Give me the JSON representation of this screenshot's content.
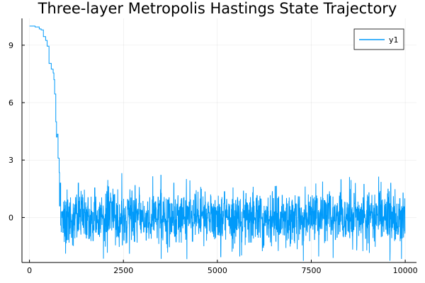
{
  "chart_data": {
    "type": "line",
    "title": "Three-layer Metropolis Hastings State Trajectory",
    "xlabel": "",
    "ylabel": "",
    "xlim": [
      -200,
      10300
    ],
    "ylim": [
      -2.35,
      10.4
    ],
    "xticks": [
      0,
      2500,
      5000,
      7500,
      10000
    ],
    "xtick_labels": [
      "0",
      "2500",
      "5000",
      "7500",
      "10000"
    ],
    "yticks": [
      0,
      3,
      6,
      9
    ],
    "ytick_labels": [
      "0",
      "3",
      "6",
      "9"
    ],
    "grid": true,
    "legend_position": "top-right",
    "series": [
      {
        "name": "y1",
        "color": "#009AFA",
        "burn_in": {
          "x": [
            0,
            150,
            150,
            260,
            260,
            310,
            310,
            370,
            370,
            430,
            430,
            470,
            470,
            520,
            520,
            580,
            580,
            630,
            630,
            650,
            650,
            670,
            670,
            700,
            700,
            720,
            720,
            735,
            735,
            760,
            760,
            790,
            790,
            800,
            800,
            815,
            815,
            830,
            830,
            845
          ],
          "y": [
            10.0,
            10.0,
            9.95,
            9.95,
            9.85,
            9.85,
            9.8,
            9.8,
            9.45,
            9.45,
            9.25,
            9.25,
            8.95,
            8.95,
            8.05,
            8.05,
            7.75,
            7.75,
            7.55,
            7.55,
            7.2,
            7.2,
            6.45,
            6.45,
            5.0,
            5.0,
            4.2,
            4.2,
            4.35,
            4.35,
            3.1,
            3.1,
            2.35,
            2.35,
            0.6,
            0.6,
            1.8,
            1.8,
            -0.4,
            -0.4
          ]
        },
        "stationary": {
          "x_start": 845,
          "x_end": 10000,
          "mean": 0,
          "approx_min": -2.3,
          "approx_max": 2.4
        }
      }
    ]
  }
}
